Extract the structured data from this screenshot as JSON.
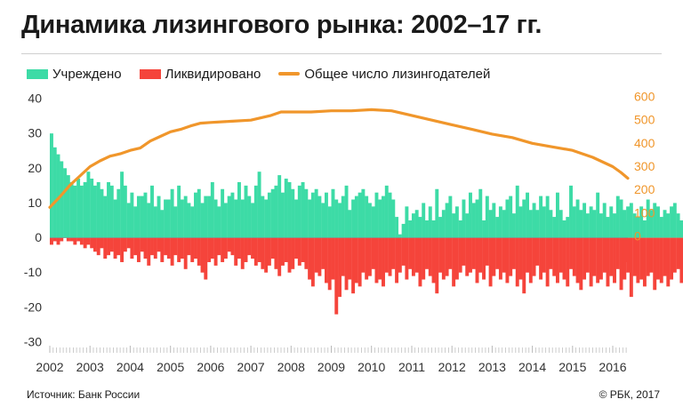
{
  "chart_data": {
    "type": "bar+line",
    "title": "Динамика лизингового рынка: 2002–17 гг.",
    "legend": [
      {
        "label": "Учреждено",
        "color": "#3ddba6"
      },
      {
        "label": "Ликвидировано",
        "color": "#f5443b"
      },
      {
        "label": "Общее число лизингодателей",
        "color": "#f0962b"
      }
    ],
    "x_ticks": [
      "2002",
      "2003",
      "2004",
      "2005",
      "2006",
      "2007",
      "2008",
      "2009",
      "2010",
      "2011",
      "2012",
      "2013",
      "2014",
      "2015",
      "2016"
    ],
    "x_range": [
      2002.0,
      2016.375
    ],
    "ylim_left": [
      -30,
      40
    ],
    "yticks_left": [
      "40",
      "30",
      "20",
      "10",
      "0",
      "-10",
      "-20",
      "-30"
    ],
    "ylim_right": [
      0,
      600
    ],
    "yticks_right": [
      "600",
      "500",
      "400",
      "300",
      "200",
      "100",
      "0"
    ],
    "series": [
      {
        "name": "Учреждено",
        "type": "bar",
        "color": "#3ddba6",
        "start": 2002.0,
        "step_months": 1,
        "values": [
          30,
          26,
          24,
          22,
          20,
          18,
          16,
          15,
          17,
          15,
          16,
          19,
          17,
          15,
          16,
          14,
          12,
          16,
          15,
          11,
          14,
          19,
          15,
          10,
          13,
          9,
          12,
          12,
          13,
          10,
          15,
          9,
          12,
          8,
          11,
          11,
          14,
          9,
          15,
          11,
          12,
          10,
          9,
          13,
          14,
          10,
          12,
          12,
          16,
          11,
          9,
          14,
          10,
          12,
          13,
          11,
          16,
          11,
          15,
          12,
          10,
          15,
          19,
          12,
          11,
          13,
          14,
          15,
          18,
          13,
          17,
          16,
          14,
          11,
          15,
          16,
          14,
          11,
          13,
          14,
          12,
          10,
          13,
          9,
          14,
          11,
          10,
          12,
          15,
          8,
          11,
          12,
          13,
          14,
          12,
          10,
          9,
          13,
          11,
          12,
          15,
          13,
          11,
          6,
          1,
          4,
          9,
          5,
          7,
          8,
          6,
          10,
          5,
          9,
          5,
          14,
          6,
          8,
          10,
          12,
          7,
          9,
          5,
          11,
          7,
          13,
          10,
          11,
          14,
          5,
          12,
          8,
          10,
          6,
          9,
          8,
          11,
          12,
          7,
          15,
          9,
          11,
          13,
          8,
          10,
          8,
          12,
          9,
          12,
          8,
          6,
          13,
          8,
          5,
          6,
          15,
          9,
          11,
          8,
          10,
          7,
          9,
          8,
          13,
          7,
          10,
          6,
          9,
          7,
          12,
          11,
          8,
          9,
          10,
          7,
          6,
          9,
          5,
          11,
          8,
          10,
          9,
          6,
          8,
          7,
          9,
          10,
          7,
          5,
          11,
          9,
          6,
          8,
          12,
          9,
          7,
          8,
          5,
          6,
          9,
          11,
          4,
          8,
          3,
          4,
          8,
          5,
          2,
          10,
          6,
          3,
          12,
          7,
          3,
          6,
          4,
          2,
          5,
          4,
          3,
          7,
          5,
          6,
          4,
          2,
          5,
          6,
          8,
          5,
          3,
          6,
          4,
          5,
          8,
          4,
          6,
          5,
          7,
          4,
          3,
          6,
          5,
          6,
          5,
          4,
          9,
          6,
          5,
          4,
          5
        ],
        "last_value": 5
      },
      {
        "name": "Ликвидировано",
        "type": "bar",
        "color": "#f5443b",
        "start": 2002.0,
        "step_months": 1,
        "values": [
          -2,
          -1,
          -2,
          -1,
          0,
          -1,
          -1,
          -2,
          -1,
          -2,
          -3,
          -2,
          -3,
          -4,
          -5,
          -3,
          -6,
          -5,
          -4,
          -6,
          -5,
          -7,
          -4,
          -3,
          -6,
          -5,
          -7,
          -4,
          -6,
          -8,
          -5,
          -6,
          -4,
          -7,
          -5,
          -6,
          -8,
          -5,
          -7,
          -6,
          -9,
          -5,
          -7,
          -6,
          -8,
          -10,
          -12,
          -7,
          -6,
          -8,
          -5,
          -7,
          -6,
          -4,
          -5,
          -8,
          -6,
          -9,
          -7,
          -5,
          -6,
          -8,
          -7,
          -9,
          -10,
          -8,
          -6,
          -9,
          -11,
          -8,
          -7,
          -10,
          -9,
          -6,
          -8,
          -7,
          -9,
          -12,
          -14,
          -10,
          -11,
          -9,
          -13,
          -15,
          -12,
          -22,
          -17,
          -11,
          -15,
          -12,
          -16,
          -13,
          -14,
          -10,
          -12,
          -11,
          -9,
          -13,
          -12,
          -14,
          -10,
          -11,
          -9,
          -13,
          -10,
          -8,
          -12,
          -9,
          -11,
          -10,
          -14,
          -12,
          -9,
          -11,
          -13,
          -16,
          -10,
          -12,
          -11,
          -9,
          -14,
          -12,
          -10,
          -8,
          -11,
          -10,
          -9,
          -13,
          -10,
          -12,
          -8,
          -14,
          -11,
          -9,
          -12,
          -10,
          -13,
          -11,
          -9,
          -14,
          -12,
          -16,
          -10,
          -13,
          -11,
          -8,
          -12,
          -10,
          -14,
          -9,
          -11,
          -13,
          -10,
          -12,
          -14,
          -9,
          -11,
          -13,
          -15,
          -12,
          -10,
          -14,
          -11,
          -13,
          -12,
          -10,
          -14,
          -11,
          -13,
          -9,
          -15,
          -12,
          -10,
          -17,
          -11,
          -13,
          -12,
          -14,
          -11,
          -10,
          -15,
          -12,
          -13,
          -11,
          -14,
          -12,
          -10,
          -9,
          -13,
          -11,
          -12,
          -14,
          -10,
          -13,
          -11,
          -12,
          -9,
          -11,
          -10,
          -13,
          -12,
          -10,
          -11,
          -9,
          -14,
          -10,
          -12,
          -11,
          -13,
          -15,
          -10,
          -12,
          -11,
          -9,
          -10,
          -12,
          -11,
          -10,
          -12,
          -9,
          -11,
          -10,
          -12,
          -8,
          -11,
          -9,
          -10,
          -12,
          -8,
          -11,
          -9,
          -7,
          -10,
          -8,
          -11,
          -9,
          -7,
          -10,
          -8,
          -12,
          -9,
          -11,
          -8,
          -10,
          -9,
          -12,
          -13,
          -10,
          -11,
          -9,
          -12,
          -10,
          -11,
          -13,
          -14,
          -12,
          -10,
          -11,
          -9,
          -12,
          -10,
          -11,
          -12,
          -9,
          -8,
          -10,
          -7
        ],
        "last_value": -7
      },
      {
        "name": "Общее число лизингодателей",
        "type": "line",
        "axis": "right",
        "color": "#f0962b",
        "x": [
          2002.0,
          2002.25,
          2002.5,
          2002.75,
          2003.0,
          2003.25,
          2003.5,
          2003.75,
          2004.0,
          2004.25,
          2004.5,
          2004.75,
          2005.0,
          2005.25,
          2005.5,
          2005.75,
          2006.0,
          2006.5,
          2007.0,
          2007.5,
          2007.75,
          2008.0,
          2008.5,
          2009.0,
          2009.5,
          2010.0,
          2010.5,
          2011.0,
          2011.5,
          2012.0,
          2012.5,
          2013.0,
          2013.5,
          2014.0,
          2014.5,
          2015.0,
          2015.5,
          2016.0,
          2016.2,
          2016.375
        ],
        "y": [
          125,
          170,
          220,
          260,
          300,
          325,
          345,
          355,
          370,
          380,
          410,
          430,
          450,
          460,
          475,
          487,
          490,
          495,
          500,
          520,
          535,
          535,
          535,
          540,
          540,
          545,
          540,
          520,
          500,
          480,
          460,
          440,
          425,
          400,
          385,
          370,
          340,
          300,
          275,
          250
        ]
      }
    ],
    "source": "Источник: Банк России",
    "copyright": "© РБК, 2017"
  }
}
